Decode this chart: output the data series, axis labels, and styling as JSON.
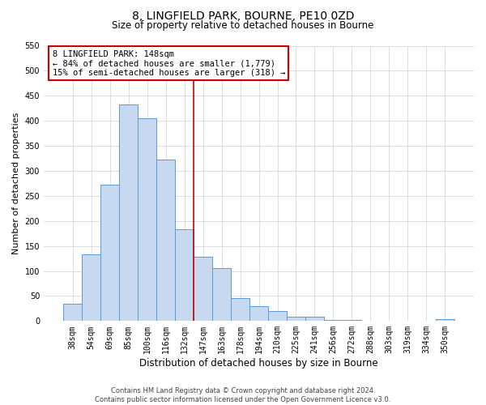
{
  "title": "8, LINGFIELD PARK, BOURNE, PE10 0ZD",
  "subtitle": "Size of property relative to detached houses in Bourne",
  "xlabel": "Distribution of detached houses by size in Bourne",
  "ylabel": "Number of detached properties",
  "bar_labels": [
    "38sqm",
    "54sqm",
    "69sqm",
    "85sqm",
    "100sqm",
    "116sqm",
    "132sqm",
    "147sqm",
    "163sqm",
    "178sqm",
    "194sqm",
    "210sqm",
    "225sqm",
    "241sqm",
    "256sqm",
    "272sqm",
    "288sqm",
    "303sqm",
    "319sqm",
    "334sqm",
    "350sqm"
  ],
  "bar_values": [
    35,
    133,
    273,
    432,
    405,
    323,
    184,
    128,
    105,
    46,
    30,
    20,
    8,
    8,
    2,
    2,
    1,
    1,
    1,
    1,
    3
  ],
  "bar_color": "#c6d9f0",
  "bar_edge_color": "#5b9bd5",
  "vline_x_index": 6.5,
  "property_line_label": "8 LINGFIELD PARK: 148sqm",
  "annotation_line1": "← 84% of detached houses are smaller (1,779)",
  "annotation_line2": "15% of semi-detached houses are larger (318) →",
  "annotation_box_facecolor": "#ffffff",
  "annotation_box_edgecolor": "#cc0000",
  "vline_color": "#cc0000",
  "ylim": [
    0,
    550
  ],
  "yticks": [
    0,
    50,
    100,
    150,
    200,
    250,
    300,
    350,
    400,
    450,
    500,
    550
  ],
  "footer1": "Contains HM Land Registry data © Crown copyright and database right 2024.",
  "footer2": "Contains public sector information licensed under the Open Government Licence v3.0.",
  "grid_color": "#d0d0d0",
  "background_color": "#ffffff",
  "title_fontsize": 10,
  "subtitle_fontsize": 8.5,
  "ylabel_fontsize": 8,
  "xlabel_fontsize": 8.5,
  "tick_fontsize": 7,
  "annotation_fontsize": 7.5,
  "footer_fontsize": 6
}
